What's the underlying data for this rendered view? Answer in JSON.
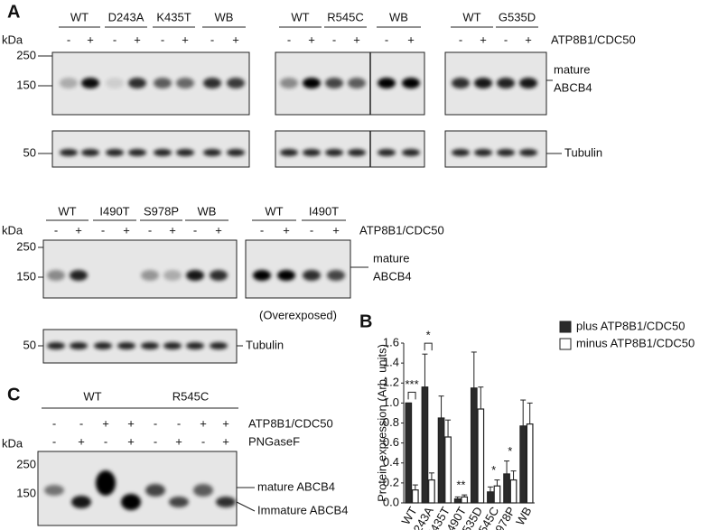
{
  "panel_a": {
    "label": "A",
    "top": {
      "kda": "kDa",
      "markers": [
        250,
        150
      ],
      "tubulin_marker": 50,
      "treatment": "ATP8B1/CDC50",
      "band_label": [
        "mature",
        "ABCB4"
      ],
      "tubulin": "Tubulin",
      "blots": [
        {
          "groups": [
            "WT",
            "D243A",
            "K435T",
            "WB"
          ],
          "signs": [
            "-",
            "+",
            "-",
            "+",
            "-",
            "+",
            "-",
            "+"
          ]
        },
        {
          "groups": [
            "WT",
            "R545C",
            "WB"
          ],
          "signs": [
            "-",
            "+",
            "-",
            "+",
            "-",
            "+"
          ]
        },
        {
          "groups": [
            "WT",
            "G535D"
          ],
          "signs": [
            "-",
            "+",
            "-",
            "+"
          ]
        }
      ]
    },
    "bottom": {
      "kda": "kDa",
      "markers": [
        250,
        150
      ],
      "tubulin_marker": 50,
      "treatment": "ATP8B1/CDC50",
      "band_label": [
        "mature",
        "ABCB4"
      ],
      "tubulin": "Tubulin",
      "note": "(Overexposed)",
      "blots": [
        {
          "groups": [
            "WT",
            "I490T",
            "S978P",
            "WB"
          ],
          "signs": [
            "-",
            "+",
            "-",
            "+",
            "-",
            "+",
            "-",
            "+"
          ]
        },
        {
          "groups": [
            "WT",
            "I490T"
          ],
          "signs": [
            "-",
            "+",
            "-",
            "+"
          ]
        }
      ]
    }
  },
  "panel_c": {
    "label": "C",
    "groups": [
      "WT",
      "R545C"
    ],
    "rows": [
      {
        "name": "ATP8B1/CDC50",
        "signs": [
          "-",
          "-",
          "+",
          "+",
          "-",
          "-",
          "+",
          "+"
        ]
      },
      {
        "name": "PNGaseF",
        "signs": [
          "-",
          "+",
          "-",
          "+",
          "-",
          "+",
          "-",
          "+"
        ]
      }
    ],
    "kda": "kDa",
    "markers": [
      250,
      150
    ],
    "band_labels": [
      "mature ABCB4",
      "Immature ABCB4"
    ]
  },
  "chart_data": {
    "type": "bar",
    "label": "B",
    "y_label": "Protein expression (Arb. units)",
    "categories": [
      "WT",
      "D243A",
      "K435T",
      "I490T",
      "G535D",
      "R545C",
      "S978P",
      "WB"
    ],
    "series": [
      {
        "name": "plus ATP8B1/CDC50",
        "color": "#2b2b2b",
        "values": [
          1.0,
          1.16,
          0.85,
          0.04,
          1.15,
          0.11,
          0.29,
          0.77
        ],
        "errors": [
          0,
          0.33,
          0.22,
          0.02,
          0.36,
          0.05,
          0.13,
          0.26
        ]
      },
      {
        "name": "minus ATP8B1/CDC50",
        "color": "#ffffff",
        "values": [
          0.13,
          0.23,
          0.66,
          0.06,
          0.94,
          0.17,
          0.23,
          0.79
        ],
        "errors": [
          0.05,
          0.07,
          0.17,
          0.02,
          0.22,
          0.06,
          0.09,
          0.21
        ]
      }
    ],
    "significance": [
      "***",
      "*",
      null,
      "**",
      null,
      "*",
      "*",
      null
    ],
    "ylim": [
      0,
      1.6
    ],
    "yticks": [
      {
        "value": 0,
        "label": "0.0"
      },
      0.2,
      0.4,
      0.6,
      0.8,
      {
        "value": 1,
        "label": "1.0"
      },
      1.2,
      1.4,
      1.6
    ],
    "legend": "top-right"
  }
}
